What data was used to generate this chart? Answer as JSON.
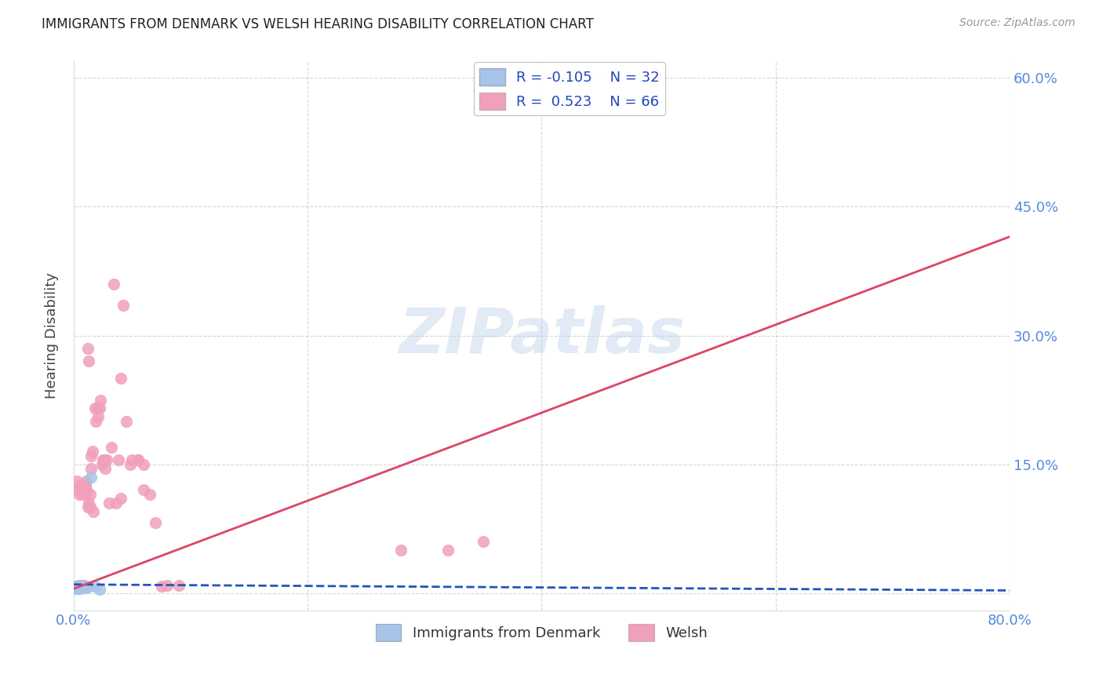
{
  "title": "IMMIGRANTS FROM DENMARK VS WELSH HEARING DISABILITY CORRELATION CHART",
  "source": "Source: ZipAtlas.com",
  "ylabel": "Hearing Disability",
  "watermark": "ZIPatlas",
  "xlim": [
    0.0,
    0.8
  ],
  "ylim": [
    -0.02,
    0.62
  ],
  "xticks": [
    0.0,
    0.2,
    0.4,
    0.6,
    0.8
  ],
  "yticks": [
    0.0,
    0.15,
    0.3,
    0.45,
    0.6
  ],
  "denmark_color": "#a8c4e8",
  "welsh_color": "#f0a0b8",
  "denmark_line_color": "#2255bb",
  "welsh_line_color": "#dd4466",
  "background_color": "#ffffff",
  "grid_color": "#cccccc",
  "legend_R1": "R = -0.105",
  "legend_N1": "N = 32",
  "legend_R2": "R =  0.523",
  "legend_N2": "N = 66",
  "denmark_points_x": [
    0.001,
    0.001,
    0.001,
    0.002,
    0.002,
    0.002,
    0.002,
    0.003,
    0.003,
    0.003,
    0.003,
    0.004,
    0.004,
    0.004,
    0.005,
    0.005,
    0.005,
    0.006,
    0.006,
    0.006,
    0.007,
    0.007,
    0.008,
    0.008,
    0.009,
    0.009,
    0.01,
    0.01,
    0.012,
    0.015,
    0.018,
    0.022
  ],
  "denmark_points_y": [
    0.005,
    0.006,
    0.007,
    0.005,
    0.006,
    0.007,
    0.008,
    0.005,
    0.006,
    0.007,
    0.008,
    0.005,
    0.007,
    0.008,
    0.005,
    0.006,
    0.008,
    0.006,
    0.007,
    0.008,
    0.006,
    0.007,
    0.006,
    0.008,
    0.006,
    0.008,
    0.006,
    0.007,
    0.007,
    0.135,
    0.008,
    0.004
  ],
  "welsh_points_x": [
    0.001,
    0.002,
    0.002,
    0.003,
    0.003,
    0.004,
    0.004,
    0.005,
    0.005,
    0.005,
    0.006,
    0.006,
    0.007,
    0.007,
    0.008,
    0.008,
    0.009,
    0.009,
    0.01,
    0.01,
    0.011,
    0.011,
    0.012,
    0.012,
    0.013,
    0.013,
    0.014,
    0.014,
    0.015,
    0.015,
    0.016,
    0.017,
    0.018,
    0.019,
    0.02,
    0.021,
    0.022,
    0.023,
    0.024,
    0.025,
    0.026,
    0.027,
    0.028,
    0.03,
    0.032,
    0.034,
    0.036,
    0.038,
    0.04,
    0.042,
    0.045,
    0.048,
    0.05,
    0.055,
    0.06,
    0.065,
    0.07,
    0.075,
    0.08,
    0.09,
    0.28,
    0.32,
    0.35,
    0.055,
    0.06,
    0.04
  ],
  "welsh_points_y": [
    0.006,
    0.007,
    0.008,
    0.008,
    0.13,
    0.008,
    0.12,
    0.009,
    0.115,
    0.125,
    0.009,
    0.12,
    0.12,
    0.125,
    0.009,
    0.115,
    0.009,
    0.12,
    0.115,
    0.125,
    0.12,
    0.13,
    0.1,
    0.285,
    0.105,
    0.27,
    0.1,
    0.115,
    0.145,
    0.16,
    0.165,
    0.095,
    0.215,
    0.2,
    0.215,
    0.205,
    0.215,
    0.225,
    0.15,
    0.155,
    0.155,
    0.145,
    0.155,
    0.105,
    0.17,
    0.36,
    0.105,
    0.155,
    0.25,
    0.335,
    0.2,
    0.15,
    0.155,
    0.155,
    0.15,
    0.115,
    0.082,
    0.008,
    0.009,
    0.009,
    0.05,
    0.05,
    0.06,
    0.155,
    0.12,
    0.11
  ],
  "dk_line_x0": 0.0,
  "dk_line_x1": 0.8,
  "dk_line_y0": 0.01,
  "dk_line_y1": 0.003,
  "w_line_x0": 0.0,
  "w_line_x1": 0.8,
  "w_line_y0": 0.005,
  "w_line_y1": 0.415
}
